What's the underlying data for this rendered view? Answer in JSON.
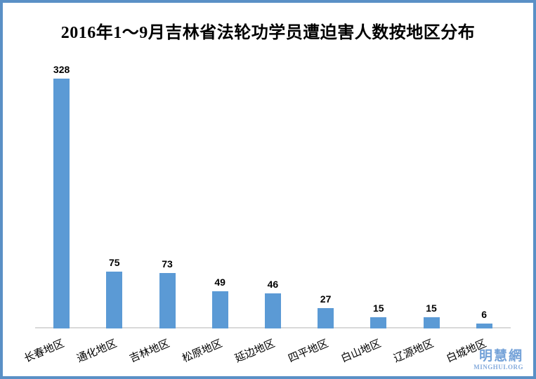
{
  "page": {
    "background": "#ffffff",
    "border_color": "#5a90c6"
  },
  "chart_data": {
    "type": "bar",
    "title": "2016年1～9月吉林省法轮功学员遭迫害人数按地区分布",
    "categories": [
      "长春地区",
      "通化地区",
      "吉林地区",
      "松原地区",
      "延边地区",
      "四平地区",
      "白山地区",
      "辽源地区",
      "白城地区"
    ],
    "values": [
      328,
      75,
      73,
      49,
      46,
      27,
      15,
      15,
      6
    ],
    "xlabel": "",
    "ylabel": "",
    "ylim": [
      0,
      340
    ],
    "grid": false,
    "legend": false,
    "value_labels_shown": true,
    "category_label_rotation_deg": -23,
    "bar_color": "#5b9ad5",
    "axis_line_color": "#d9d9d9",
    "value_label_color": "#000000",
    "category_label_color": "#000000",
    "title_color": "#000000"
  },
  "watermark": {
    "cjk": "明慧網",
    "latin": "MINGHUI.ORG",
    "color": "#74a2d8"
  }
}
